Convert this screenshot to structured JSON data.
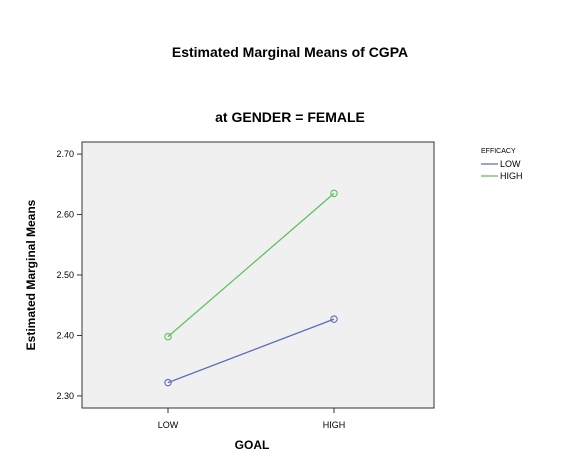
{
  "chart_data": {
    "type": "line",
    "title": "Estimated Marginal Means of CGPA",
    "subtitle": "at GENDER = FEMALE",
    "xlabel": "GOAL",
    "ylabel": "Estimated Marginal Means",
    "categories": [
      "LOW",
      "HIGH"
    ],
    "ylim": [
      2.28,
      2.72
    ],
    "yticks": [
      "2.30",
      "2.40",
      "2.50",
      "2.60",
      "2.70"
    ],
    "ytick_values": [
      2.3,
      2.4,
      2.5,
      2.6,
      2.7
    ],
    "grid": false,
    "legend": {
      "title": "EFFICACY",
      "placement": "right"
    },
    "series": [
      {
        "name": "LOW",
        "color": "#5b6db8",
        "values": [
          2.322,
          2.427
        ]
      },
      {
        "name": "HIGH",
        "color": "#5ec15e",
        "values": [
          2.398,
          2.635
        ]
      }
    ],
    "plot_background": "#f0f0f0",
    "marker": "circle-open"
  }
}
